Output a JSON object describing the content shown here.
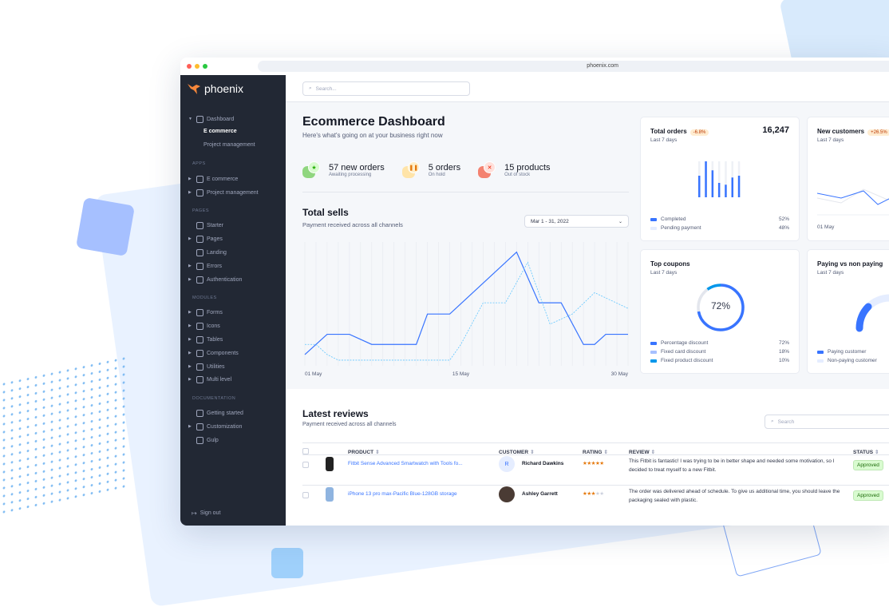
{
  "browser": {
    "url": "phoenix.com"
  },
  "brand": {
    "name": "phoenix",
    "accent": "#3874ff",
    "sidebar_bg": "#222834"
  },
  "sidebar": {
    "items": [
      {
        "type": "item",
        "label": "Dashboard",
        "icon": "monitor-icon",
        "expanded": true,
        "top": 0
      },
      {
        "type": "sub",
        "label": "E commerce",
        "active": true
      },
      {
        "type": "sub",
        "label": "Project management"
      },
      {
        "type": "head",
        "label": "APPS"
      },
      {
        "type": "item",
        "label": "E commerce",
        "icon": "cart-icon"
      },
      {
        "type": "item",
        "label": "Project management",
        "icon": "clipboard-icon"
      },
      {
        "type": "head",
        "label": "PAGES"
      },
      {
        "type": "item",
        "label": "Starter",
        "icon": "compass-icon",
        "nochev": true
      },
      {
        "type": "item",
        "label": "Pages",
        "icon": "layout-icon"
      },
      {
        "type": "item",
        "label": "Landing",
        "icon": "monitor-icon",
        "nochev": true
      },
      {
        "type": "item",
        "label": "Errors",
        "icon": "alert-triangle-icon"
      },
      {
        "type": "item",
        "label": "Authentication",
        "icon": "lock-icon"
      },
      {
        "type": "head",
        "label": "MODULES"
      },
      {
        "type": "item",
        "label": "Forms",
        "icon": "file-text-icon"
      },
      {
        "type": "item",
        "label": "Icons",
        "icon": "grid-icon"
      },
      {
        "type": "item",
        "label": "Tables",
        "icon": "columns-icon"
      },
      {
        "type": "item",
        "label": "Components",
        "icon": "package-icon"
      },
      {
        "type": "item",
        "label": "Utilities",
        "icon": "tool-icon"
      },
      {
        "type": "item",
        "label": "Multi level",
        "icon": "layers-icon"
      },
      {
        "type": "head",
        "label": "DOCUMENTATION"
      },
      {
        "type": "item",
        "label": "Getting started",
        "icon": "life-buoy-icon",
        "nochev": true
      },
      {
        "type": "item",
        "label": "Customization",
        "icon": "settings-icon"
      },
      {
        "type": "item",
        "label": "Gulp",
        "icon": "gulp-icon",
        "nochev": true
      }
    ],
    "sign_out": "Sign out"
  },
  "topbar": {
    "search_placeholder": "Search..."
  },
  "header": {
    "title": "Ecommerce Dashboard",
    "subtitle": "Here's what's going on at your business right now"
  },
  "stats": [
    {
      "value": "57 new orders",
      "label": "Awaiting processing",
      "icon": "star-icon",
      "color": "#25b003",
      "bg": "#d9fbd0",
      "blob": "#90d67f"
    },
    {
      "value": "5 orders",
      "label": "On hold",
      "icon": "pause-icon",
      "color": "#e5780b",
      "bg": "#ffefca",
      "blob": "#ffe4a8"
    },
    {
      "value": "15 products",
      "label": "Out of stock",
      "icon": "x-icon",
      "color": "#ec1f00",
      "bg": "#ffe0db",
      "blob": "#f48270"
    }
  ],
  "total_sells": {
    "title": "Total sells",
    "subtitle": "Payment received across all channels",
    "date_range": "Mar 1 - 31, 2022"
  },
  "chart_data": [
    {
      "type": "line",
      "title": "Total sells",
      "x_tick_labels": [
        "01 May",
        "15 May",
        "30 May"
      ],
      "x_unit": "day of May",
      "xlim": [
        1,
        30
      ],
      "ylim": [
        0,
        110
      ],
      "grid": "vertical",
      "series": [
        {
          "style": "solid",
          "color": "#3874ff",
          "points": [
            [
              1,
              10
            ],
            [
              3,
              28
            ],
            [
              5,
              28
            ],
            [
              7,
              19
            ],
            [
              11,
              19
            ],
            [
              12,
              46
            ],
            [
              14,
              46
            ],
            [
              20,
              101
            ],
            [
              22,
              56
            ],
            [
              24,
              56
            ],
            [
              26,
              19
            ],
            [
              27,
              19
            ],
            [
              28,
              28
            ],
            [
              30,
              28
            ]
          ]
        },
        {
          "style": "dashed",
          "color": "#60c6ff",
          "points": [
            [
              1,
              19
            ],
            [
              2,
              19
            ],
            [
              3,
              10
            ],
            [
              4,
              5
            ],
            [
              14,
              5
            ],
            [
              15,
              19
            ],
            [
              17,
              56
            ],
            [
              19,
              56
            ],
            [
              21,
              92
            ],
            [
              23,
              37
            ],
            [
              25,
              46
            ],
            [
              27,
              65
            ],
            [
              30,
              51
            ]
          ]
        }
      ]
    },
    {
      "type": "bar",
      "title": "Total orders",
      "values_percent": [
        60,
        100,
        75,
        40,
        35,
        55,
        60
      ]
    }
  ],
  "cards": {
    "total_orders": {
      "title": "Total orders",
      "badge": "-6.8%",
      "value": "16,247",
      "period": "Last 7 days",
      "legend": [
        {
          "label": "Completed",
          "value": "52%",
          "color": "#3874ff"
        },
        {
          "label": "Pending payment",
          "value": "48%",
          "color": "#e5edff"
        }
      ]
    },
    "new_customers": {
      "title": "New customers",
      "badge": "+26.5%",
      "period": "Last 7 days",
      "x_label": "01 May"
    },
    "top_coupons": {
      "title": "Top coupons",
      "period": "Last 7 days",
      "center": "72%",
      "legend": [
        {
          "label": "Percentage discount",
          "value": "72%",
          "color": "#3874ff"
        },
        {
          "label": "Fixed card discount",
          "value": "18%",
          "color": "#a6c0ff"
        },
        {
          "label": "Fixed product discount",
          "value": "10%",
          "color": "#0097eb"
        }
      ]
    },
    "paying": {
      "title": "Paying vs non paying",
      "period": "Last 7 days",
      "legend": [
        {
          "label": "Paying customer",
          "color": "#3874ff"
        },
        {
          "label": "Non-paying customer",
          "color": "#e5edff"
        }
      ]
    }
  },
  "reviews": {
    "title": "Latest reviews",
    "subtitle": "Payment received across all channels",
    "search_placeholder": "Search",
    "columns": [
      "PRODUCT",
      "CUSTOMER",
      "RATING",
      "REVIEW",
      "STATUS"
    ],
    "rows": [
      {
        "product": "Fitbit Sense Advanced Smartwatch with Tools fo...",
        "customer": "Richard Dawkins",
        "avatar": "R",
        "rating": 5,
        "review": "This Fitbit is fantastic! I was trying to be in better shape and needed some motivation, so I decided to treat myself to a new Fitbit.",
        "status": "Approved"
      },
      {
        "product": "iPhone 13 pro max-Pacific Blue-128GB storage",
        "customer": "Ashley Garrett",
        "avatar": "",
        "rating": 3,
        "review": "The order was delivered ahead of schedule. To give us additional time, you should leave the packaging sealed with plastic.",
        "status": "Approved"
      }
    ]
  }
}
